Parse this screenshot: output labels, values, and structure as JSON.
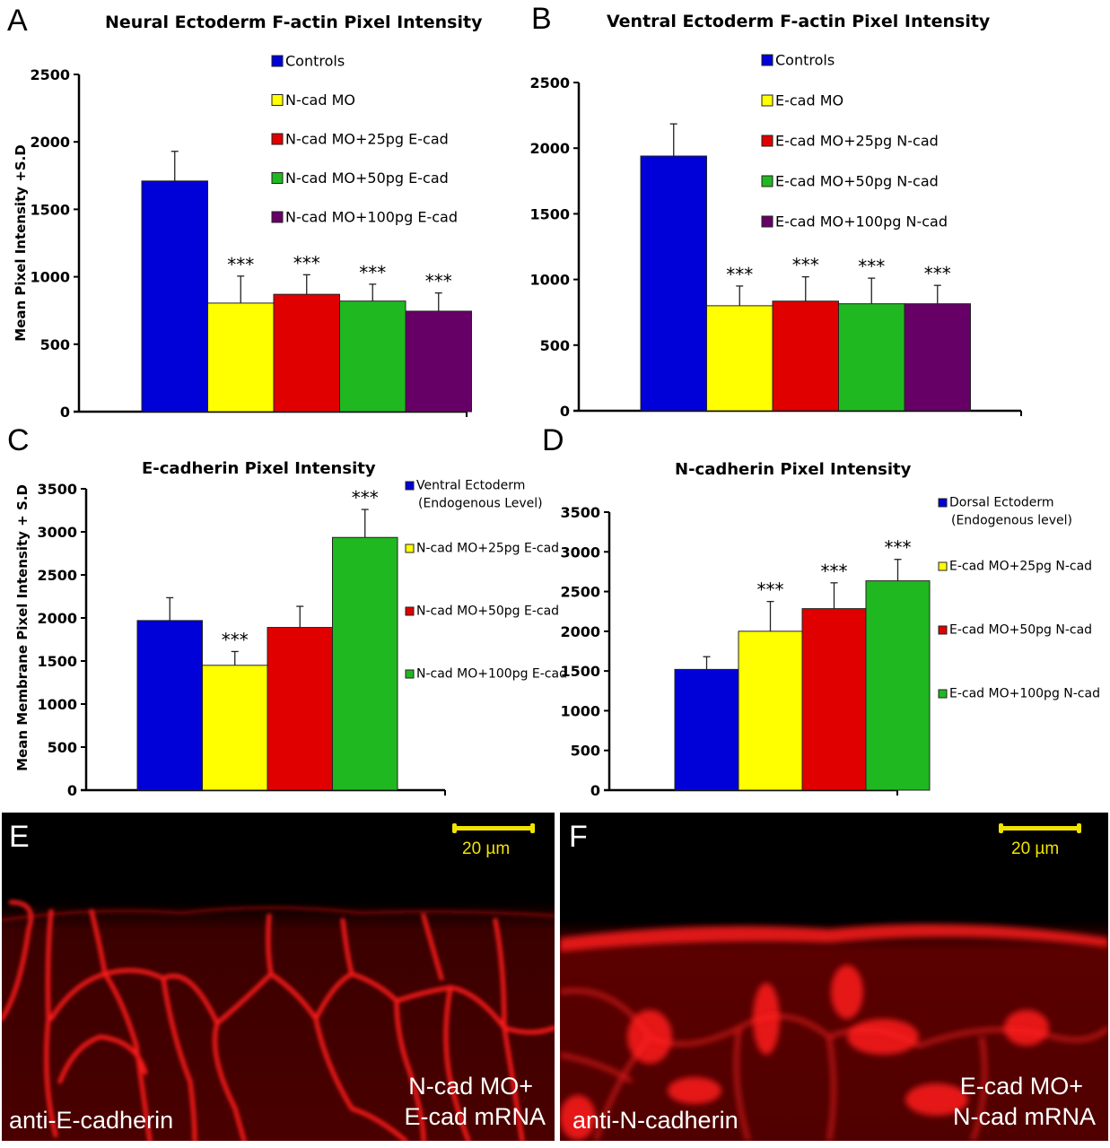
{
  "panels": {
    "A": "A",
    "B": "B",
    "C": "C",
    "D": "D",
    "E": "E",
    "F": "F"
  },
  "chart_data": [
    {
      "id": "A",
      "type": "bar",
      "title": "Neural Ectoderm F-actin Pixel Intensity",
      "ylabel": "Mean Pixel Intensity +S.D",
      "xlabel": "",
      "ylim": [
        0,
        2500
      ],
      "yticks": [
        0,
        500,
        1000,
        1500,
        2000,
        2500
      ],
      "legend_position": "top-right",
      "categories": [
        "Controls",
        "N-cad MO",
        "N-cad MO+25pg E-cad",
        "N-cad MO+50pg E-cad",
        "N-cad MO+100pg E-cad"
      ],
      "colors": [
        "#0000d8",
        "#ffff00",
        "#e00000",
        "#20b820",
        "#660066"
      ],
      "values": [
        1710,
        805,
        870,
        820,
        745
      ],
      "error_sd": [
        220,
        200,
        145,
        125,
        135
      ],
      "significance": [
        "",
        "***",
        "***",
        "***",
        "***"
      ]
    },
    {
      "id": "B",
      "type": "bar",
      "title": "Ventral Ectoderm F-actin Pixel Intensity",
      "ylabel": "",
      "xlabel": "",
      "ylim": [
        0,
        2500
      ],
      "yticks": [
        0,
        500,
        1000,
        1500,
        2000,
        2500
      ],
      "legend_position": "top-right",
      "categories": [
        "Controls",
        "E-cad MO",
        "E-cad MO+25pg N-cad",
        "E-cad MO+50pg N-cad",
        "E-cad MO+100pg N-cad"
      ],
      "colors": [
        "#0000d8",
        "#ffff00",
        "#e00000",
        "#20b820",
        "#660066"
      ],
      "values": [
        1940,
        800,
        835,
        815,
        815
      ],
      "error_sd": [
        245,
        150,
        185,
        195,
        140
      ],
      "significance": [
        "",
        "***",
        "***",
        "***",
        "***"
      ]
    },
    {
      "id": "C",
      "type": "bar",
      "title": "E-cadherin Pixel Intensity",
      "ylabel": "Mean Membrane Pixel Intensity + S.D",
      "xlabel": "",
      "ylim": [
        0,
        3500
      ],
      "yticks": [
        0,
        500,
        1000,
        1500,
        2000,
        2500,
        3000,
        3500
      ],
      "legend_position": "right",
      "categories": [
        "Ventral Ectoderm (Endogenous Level)",
        "N-cad MO+25pg E-cad",
        "N-cad MO+50pg E-cad",
        "N-cad MO+100pg E-cad"
      ],
      "legend_lines": [
        [
          "Ventral Ectoderm",
          "(Endogenous Level)"
        ],
        [
          "N-cad MO+25pg E-cad"
        ],
        [
          "N-cad MO+50pg E-cad"
        ],
        [
          "N-cad MO+100pg E-cad"
        ]
      ],
      "colors": [
        "#0000d8",
        "#ffff00",
        "#e00000",
        "#20b820"
      ],
      "values": [
        1970,
        1450,
        1890,
        2935
      ],
      "error_sd": [
        265,
        160,
        245,
        325
      ],
      "significance": [
        "",
        "***",
        "",
        "***"
      ]
    },
    {
      "id": "D",
      "type": "bar",
      "title": "N-cadherin Pixel Intensity",
      "ylabel": "",
      "xlabel": "",
      "ylim": [
        0,
        3500
      ],
      "yticks": [
        0,
        500,
        1000,
        1500,
        2000,
        2500,
        3000,
        3500
      ],
      "legend_position": "right",
      "categories": [
        "Dorsal Ectoderm (Endogenous level)",
        "E-cad MO+25pg N-cad",
        "E-cad MO+50pg N-cad",
        "E-cad MO+100pg N-cad"
      ],
      "legend_lines": [
        [
          "Dorsal Ectoderm",
          "(Endogenous level)"
        ],
        [
          "E-cad MO+25pg N-cad"
        ],
        [
          "E-cad MO+50pg N-cad"
        ],
        [
          "E-cad MO+100pg N-cad"
        ]
      ],
      "colors": [
        "#0000d8",
        "#ffff00",
        "#e00000",
        "#20b820"
      ],
      "values": [
        1520,
        2000,
        2285,
        2635
      ],
      "error_sd": [
        160,
        375,
        325,
        270
      ],
      "significance": [
        "",
        "***",
        "***",
        "***"
      ]
    }
  ],
  "micrographs": {
    "E": {
      "stain_label": "anti-E-cadherin",
      "condition_line1": "N-cad MO+",
      "condition_line2": "E-cad mRNA",
      "scale_bar": "20 µm"
    },
    "F": {
      "stain_label": "anti-N-cadherin",
      "condition_line1": "E-cad MO+",
      "condition_line2": "N-cad mRNA",
      "scale_bar": "20 µm"
    }
  }
}
